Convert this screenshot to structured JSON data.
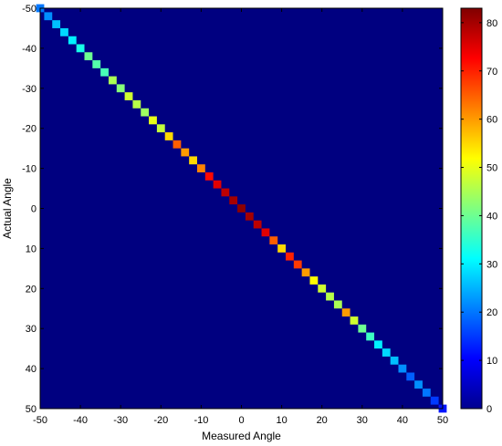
{
  "chart_data": {
    "type": "heatmap",
    "title": "",
    "xlabel": "Measured Angle",
    "ylabel": "Actual Angle",
    "xlim": [
      -50,
      50
    ],
    "ylim": [
      -50,
      50
    ],
    "y_axis_direction": "top-to-bottom",
    "grid": false,
    "colormap": "jet",
    "xticks": [
      -50,
      -40,
      -30,
      -20,
      -10,
      0,
      10,
      20,
      30,
      40,
      50
    ],
    "yticks": [
      -50,
      -40,
      -30,
      -20,
      -10,
      0,
      10,
      20,
      30,
      40,
      50
    ],
    "colorbar": {
      "range": [
        0,
        83
      ],
      "ticks": [
        0,
        10,
        20,
        30,
        40,
        50,
        60,
        70,
        80
      ]
    },
    "bin_width": 1,
    "background_count": 0,
    "diagonal": [
      {
        "measured": -50,
        "actual": -50,
        "count": 20
      },
      {
        "measured": -48,
        "actual": -48,
        "count": 22
      },
      {
        "measured": -46,
        "actual": -46,
        "count": 26
      },
      {
        "measured": -44,
        "actual": -44,
        "count": 28
      },
      {
        "measured": -42,
        "actual": -42,
        "count": 30
      },
      {
        "measured": -40,
        "actual": -40,
        "count": 33
      },
      {
        "measured": -38,
        "actual": -38,
        "count": 40
      },
      {
        "measured": -36,
        "actual": -36,
        "count": 38
      },
      {
        "measured": -34,
        "actual": -34,
        "count": 37
      },
      {
        "measured": -32,
        "actual": -32,
        "count": 45
      },
      {
        "measured": -30,
        "actual": -30,
        "count": 42
      },
      {
        "measured": -28,
        "actual": -28,
        "count": 48
      },
      {
        "measured": -26,
        "actual": -26,
        "count": 46
      },
      {
        "measured": -24,
        "actual": -24,
        "count": 44
      },
      {
        "measured": -22,
        "actual": -22,
        "count": 50
      },
      {
        "measured": -20,
        "actual": -20,
        "count": 47
      },
      {
        "measured": -18,
        "actual": -18,
        "count": 55
      },
      {
        "measured": -16,
        "actual": -16,
        "count": 65
      },
      {
        "measured": -14,
        "actual": -14,
        "count": 60
      },
      {
        "measured": -12,
        "actual": -12,
        "count": 55
      },
      {
        "measured": -10,
        "actual": -10,
        "count": 62
      },
      {
        "measured": -8,
        "actual": -8,
        "count": 72
      },
      {
        "measured": -6,
        "actual": -6,
        "count": 75
      },
      {
        "measured": -4,
        "actual": -4,
        "count": 78
      },
      {
        "measured": -2,
        "actual": -2,
        "count": 80
      },
      {
        "measured": 0,
        "actual": 0,
        "count": 82
      },
      {
        "measured": 2,
        "actual": 2,
        "count": 80
      },
      {
        "measured": 4,
        "actual": 4,
        "count": 78
      },
      {
        "measured": 6,
        "actual": 6,
        "count": 75
      },
      {
        "measured": 8,
        "actual": 8,
        "count": 65
      },
      {
        "measured": 10,
        "actual": 10,
        "count": 55
      },
      {
        "measured": 12,
        "actual": 12,
        "count": 70
      },
      {
        "measured": 14,
        "actual": 14,
        "count": 68
      },
      {
        "measured": 16,
        "actual": 16,
        "count": 60
      },
      {
        "measured": 18,
        "actual": 18,
        "count": 52
      },
      {
        "measured": 20,
        "actual": 20,
        "count": 48
      },
      {
        "measured": 22,
        "actual": 22,
        "count": 46
      },
      {
        "measured": 24,
        "actual": 24,
        "count": 45
      },
      {
        "measured": 26,
        "actual": 26,
        "count": 60
      },
      {
        "measured": 28,
        "actual": 28,
        "count": 48
      },
      {
        "measured": 30,
        "actual": 30,
        "count": 40
      },
      {
        "measured": 32,
        "actual": 32,
        "count": 36
      },
      {
        "measured": 34,
        "actual": 34,
        "count": 30
      },
      {
        "measured": 36,
        "actual": 36,
        "count": 28
      },
      {
        "measured": 38,
        "actual": 38,
        "count": 26
      },
      {
        "measured": 40,
        "actual": 40,
        "count": 22
      },
      {
        "measured": 42,
        "actual": 42,
        "count": 18
      },
      {
        "measured": 44,
        "actual": 44,
        "count": 22
      },
      {
        "measured": 46,
        "actual": 46,
        "count": 20
      },
      {
        "measured": 48,
        "actual": 48,
        "count": 15
      },
      {
        "measured": 50,
        "actual": 50,
        "count": 12
      }
    ]
  }
}
